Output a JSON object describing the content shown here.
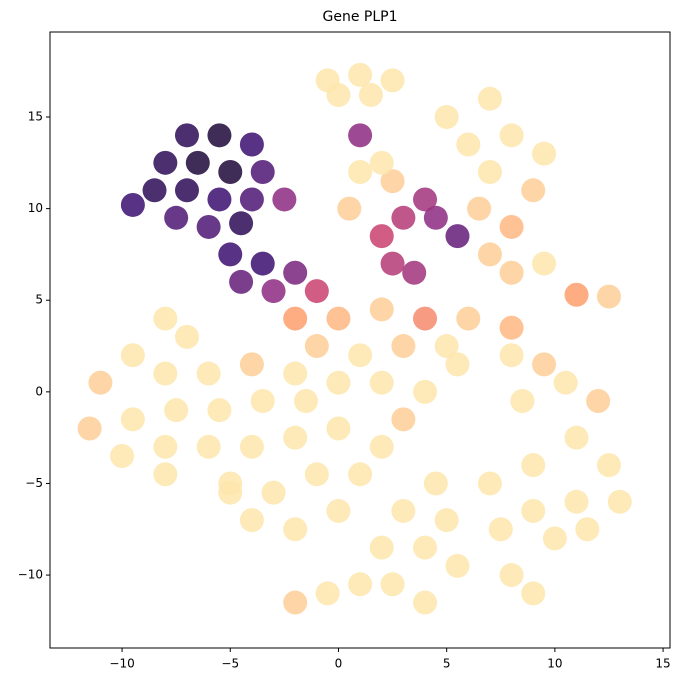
{
  "chart_data": {
    "type": "scatter",
    "title": "Gene PLP1",
    "colormap": "magma_r",
    "xlim": [
      -13.33,
      15.32
    ],
    "ylim": [
      -13.98,
      19.64
    ],
    "xticks": [
      {
        "value": -10,
        "label": "−10"
      },
      {
        "value": -5,
        "label": "−5"
      },
      0,
      5,
      10,
      15
    ],
    "yticks": [
      {
        "value": -10,
        "label": "−10"
      },
      {
        "value": -5,
        "label": "−5"
      },
      0,
      5,
      10,
      15
    ],
    "x": [
      -0.5,
      1,
      2.5,
      1.5,
      0,
      1,
      -7,
      -5.5,
      -4,
      -8,
      -6.5,
      -5,
      -3.5,
      -8.5,
      -7,
      -5.5,
      -4,
      -2.5,
      -9.5,
      -7.5,
      -6,
      -4.5,
      -5,
      -3.5,
      -2,
      -4.5,
      -3,
      -1,
      2.5,
      3.5,
      2,
      4.5,
      5.5,
      4,
      3,
      5,
      7,
      6,
      8,
      9.5,
      7,
      9,
      6.5,
      8,
      9.5,
      8,
      7,
      11,
      12.5,
      1,
      2.5,
      0.5,
      2,
      -2,
      0,
      2,
      4,
      -1,
      1,
      3,
      5,
      -2,
      0,
      2,
      4,
      3,
      5.5,
      6,
      8,
      9.5,
      10.5,
      8,
      8.5,
      12,
      -8,
      -7,
      -9.5,
      -11,
      -8,
      -6,
      -4,
      -11.5,
      -9.5,
      -7.5,
      -5.5,
      -3.5,
      -1.5,
      -10,
      -8,
      -6,
      -4,
      -2,
      0,
      2,
      -8,
      -5,
      -3,
      -1,
      1,
      -4,
      -2,
      0,
      -5,
      4.5,
      3,
      5,
      2,
      4,
      2.5,
      4,
      5.5,
      -2,
      -0.5,
      1,
      7,
      9,
      11,
      12.5,
      13,
      11,
      9,
      7.5,
      10,
      11.5,
      8,
      9
    ],
    "y": [
      17,
      17.3,
      17,
      16.2,
      16.2,
      14,
      14,
      14,
      13.5,
      12.5,
      12.5,
      12,
      12,
      11,
      11,
      10.5,
      10.5,
      10.5,
      10.2,
      9.5,
      9,
      9.2,
      7.5,
      7,
      6.5,
      6,
      5.5,
      5.5,
      7,
      6.5,
      8.5,
      9.5,
      8.5,
      10.5,
      9.5,
      15,
      16,
      13.5,
      14,
      13,
      12,
      11,
      10,
      9,
      7,
      6.5,
      7.5,
      5.3,
      5.2,
      12,
      11.5,
      10,
      12.5,
      4,
      4,
      4.5,
      4,
      2.5,
      2,
      2.5,
      2.5,
      1,
      0.5,
      0.5,
      0,
      -1.5,
      1.5,
      4,
      2,
      1.5,
      0.5,
      3.5,
      -0.5,
      -0.5,
      4,
      3,
      2,
      0.5,
      1,
      1,
      1.5,
      -2,
      -1.5,
      -1,
      -1,
      -0.5,
      -0.5,
      -3.5,
      -3,
      -3,
      -3,
      -2.5,
      -2,
      -3,
      -4.5,
      -5,
      -5.5,
      -4.5,
      -4.5,
      -7,
      -7.5,
      -6.5,
      -5.5,
      -5,
      -6.5,
      -7,
      -8.5,
      -8.5,
      -10.5,
      -11.5,
      -9.5,
      -11.5,
      -11,
      -10.5,
      -5,
      -4,
      -2.5,
      -4,
      -6,
      -6,
      -6.5,
      -7.5,
      -8,
      -7.5,
      -10,
      -11
    ],
    "values": [
      0.05,
      0.05,
      0.05,
      0.05,
      0.05,
      0.6,
      0.85,
      0.9,
      0.8,
      0.85,
      0.9,
      0.9,
      0.75,
      0.85,
      0.85,
      0.8,
      0.75,
      0.6,
      0.8,
      0.75,
      0.75,
      0.85,
      0.8,
      0.8,
      0.65,
      0.7,
      0.6,
      0.45,
      0.5,
      0.55,
      0.45,
      0.6,
      0.7,
      0.55,
      0.5,
      0.05,
      0.05,
      0.05,
      0.05,
      0.05,
      0.05,
      0.1,
      0.1,
      0.15,
      0.05,
      0.1,
      0.1,
      0.2,
      0.1,
      0.05,
      0.1,
      0.1,
      0.05,
      0.2,
      0.15,
      0.1,
      0.25,
      0.1,
      0.05,
      0.1,
      0.05,
      0.05,
      0.05,
      0.05,
      0.05,
      0.1,
      0.05,
      0.1,
      0.05,
      0.1,
      0.05,
      0.15,
      0.05,
      0.1,
      0.05,
      0.05,
      0.05,
      0.1,
      0.05,
      0.05,
      0.1,
      0.1,
      0.05,
      0.05,
      0.05,
      0.05,
      0.05,
      0.05,
      0.05,
      0.05,
      0.05,
      0.05,
      0.05,
      0.05,
      0.05,
      0.05,
      0.05,
      0.05,
      0.05,
      0.05,
      0.05,
      0.05,
      0.05,
      0.05,
      0.05,
      0.05,
      0.05,
      0.05,
      0.05,
      0.05,
      0.05,
      0.1,
      0.05,
      0.05,
      0.05,
      0.05,
      0.05,
      0.05,
      0.05,
      0.05,
      0.05,
      0.05,
      0.05,
      0.05,
      0.05,
      0.05
    ]
  }
}
